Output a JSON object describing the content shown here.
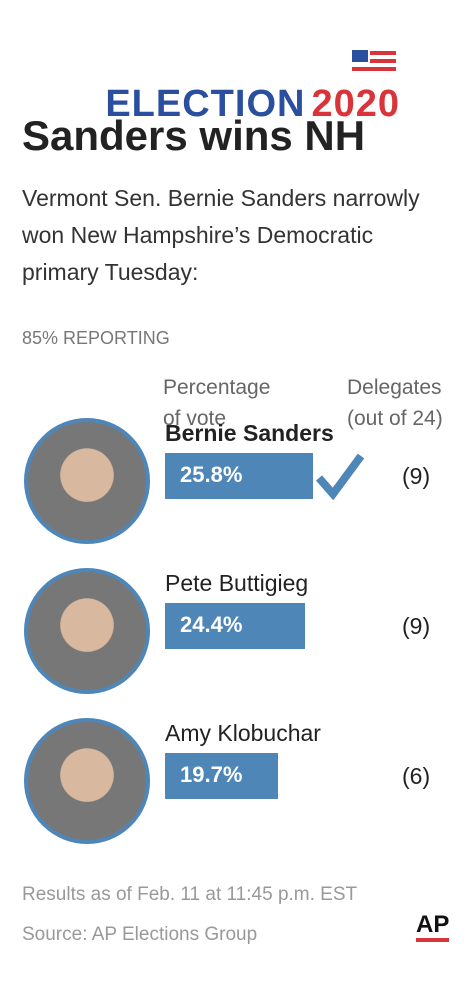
{
  "header": {
    "brand": "ELECTION",
    "year": "2020"
  },
  "title": "Sanders wins NH",
  "subtitle": "Vermont Sen. Bernie Sanders narrowly won New Hampshire’s Democratic primary Tuesday:",
  "reporting": "85% REPORTING",
  "chart_data": {
    "type": "bar",
    "value_header": "Percentage\nof vote",
    "delegates_header": "Delegates\n(out of 24)",
    "categories": [
      "Bernie Sanders",
      "Pete Buttigieg",
      "Amy Klobuchar"
    ],
    "values": [
      25.8,
      24.4,
      19.7
    ],
    "value_labels": [
      "25.8%",
      "24.4%",
      "19.7%"
    ],
    "delegates": [
      "(9)",
      "(9)",
      "(6)"
    ],
    "color": "#4f86b8",
    "winner": 0
  },
  "footer": {
    "note": "Results as of Feb. 11 at 11:45 p.m. EST",
    "source": "Source: AP Elections Group",
    "logo": "AP"
  }
}
